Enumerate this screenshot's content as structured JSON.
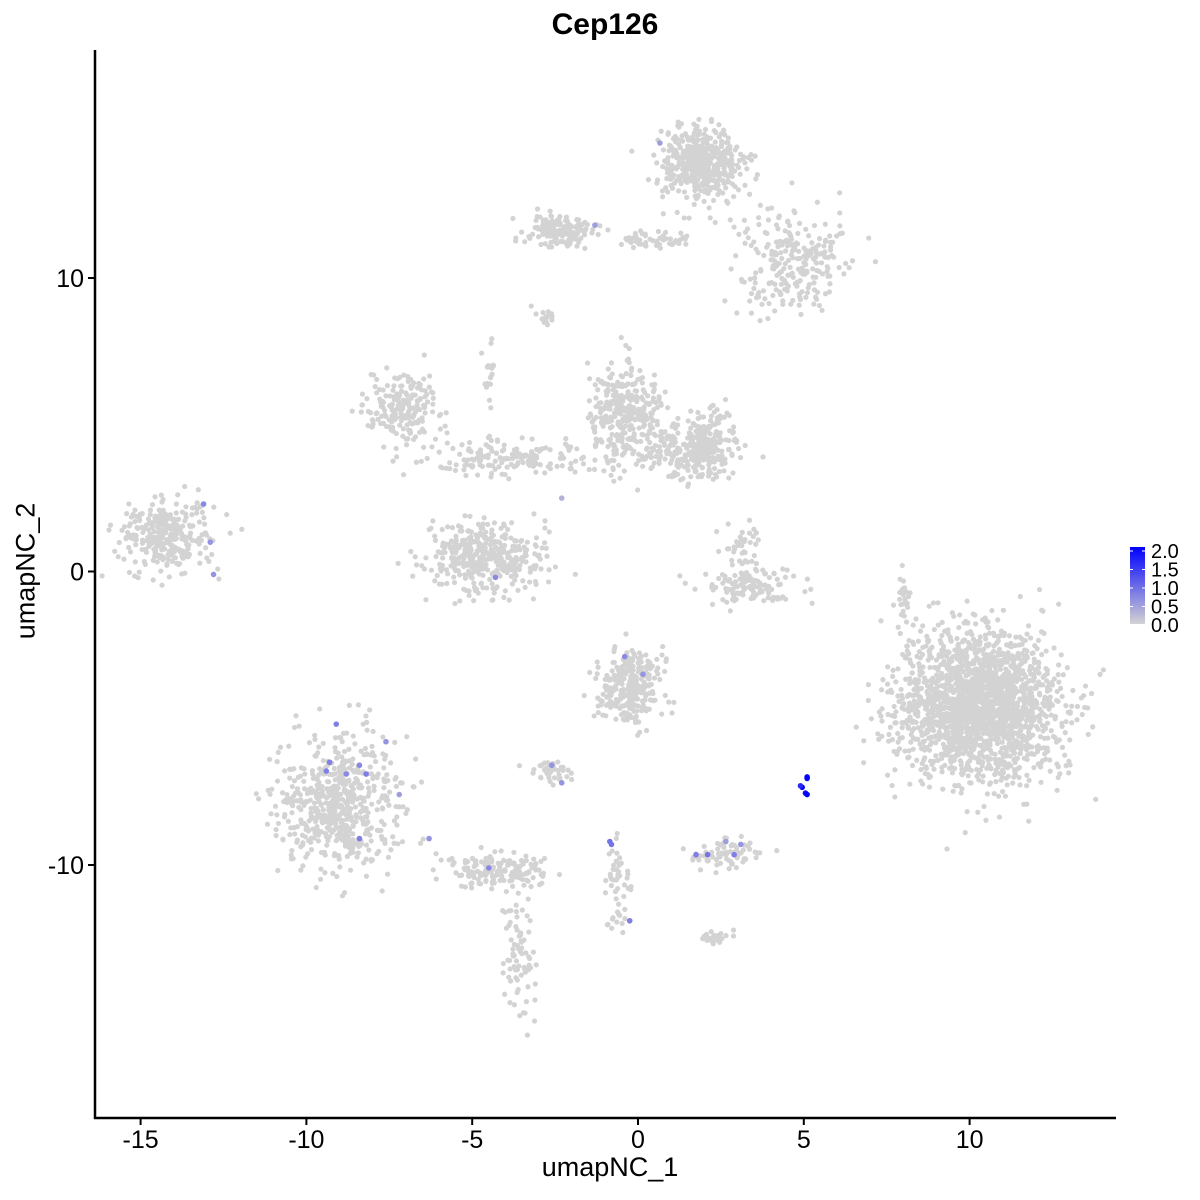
{
  "chart_data": {
    "type": "scatter",
    "title": "Cep126",
    "xlabel": "umapNC_1",
    "ylabel": "umapNC_2",
    "xlim": [
      -16.5,
      14.3
    ],
    "ylim": [
      -18.5,
      17.8
    ],
    "xticks": [
      "-15",
      "-10",
      "-5",
      "0",
      "5",
      "10"
    ],
    "yticks": [
      "-10",
      "0",
      "10"
    ],
    "grid": false,
    "legend": {
      "position": "right",
      "labels": [
        "2.0",
        "1.5",
        "1.0",
        "0.5",
        "0.0"
      ],
      "range": [
        0,
        2
      ]
    },
    "colors": {
      "low": "#D3D3D3",
      "high": "#0000FF"
    },
    "clusters_approx": [
      {
        "x": 1.9,
        "y": 13.9,
        "sdx": 0.6,
        "sdy": 0.6,
        "n": 500
      },
      {
        "x": 4.6,
        "y": 10.6,
        "sdx": 0.8,
        "sdy": 0.9,
        "n": 250
      },
      {
        "x": -2.35,
        "y": 11.6,
        "sdx": 0.5,
        "sdy": 0.3,
        "n": 150
      },
      {
        "x": 0.4,
        "y": 11.3,
        "sdx": 0.6,
        "sdy": 0.15,
        "n": 50
      },
      {
        "x": -2.8,
        "y": 8.7,
        "sdx": 0.15,
        "sdy": 0.15,
        "n": 15
      },
      {
        "x": -7.0,
        "y": 5.5,
        "sdx": 0.6,
        "sdy": 0.6,
        "n": 200
      },
      {
        "x": -4.5,
        "y": 6.8,
        "sdx": 0.1,
        "sdy": 0.5,
        "n": 20
      },
      {
        "x": -3.9,
        "y": 3.9,
        "sdx": 1.2,
        "sdy": 0.3,
        "n": 150
      },
      {
        "x": -0.4,
        "y": 5.3,
        "sdx": 0.6,
        "sdy": 0.8,
        "n": 350
      },
      {
        "x": 2.0,
        "y": 4.2,
        "sdx": 0.5,
        "sdy": 0.5,
        "n": 250
      },
      {
        "x": 0.9,
        "y": 4.1,
        "sdx": 0.5,
        "sdy": 0.3,
        "n": 60
      },
      {
        "x": -4.6,
        "y": 0.5,
        "sdx": 0.9,
        "sdy": 0.6,
        "n": 400
      },
      {
        "x": -14.2,
        "y": 1.2,
        "sdx": 0.7,
        "sdy": 0.6,
        "n": 300
      },
      {
        "x": 3.4,
        "y": -0.5,
        "sdx": 0.7,
        "sdy": 0.3,
        "n": 120
      },
      {
        "x": 3.1,
        "y": 0.8,
        "sdx": 0.3,
        "sdy": 0.4,
        "n": 40
      },
      {
        "x": 10.2,
        "y": -4.6,
        "sdx": 1.2,
        "sdy": 1.3,
        "n": 2000
      },
      {
        "x": 8.0,
        "y": -0.7,
        "sdx": 0.1,
        "sdy": 0.6,
        "n": 20
      },
      {
        "x": -0.2,
        "y": -3.9,
        "sdx": 0.5,
        "sdy": 0.6,
        "n": 300
      },
      {
        "x": -9.0,
        "y": -7.9,
        "sdx": 0.9,
        "sdy": 1.1,
        "n": 600
      },
      {
        "x": -4.2,
        "y": -10.2,
        "sdx": 0.8,
        "sdy": 0.3,
        "n": 150
      },
      {
        "x": -3.6,
        "y": -13.0,
        "sdx": 0.25,
        "sdy": 1.2,
        "n": 80
      },
      {
        "x": -2.6,
        "y": -6.8,
        "sdx": 0.3,
        "sdy": 0.2,
        "n": 40
      },
      {
        "x": 2.7,
        "y": -9.6,
        "sdx": 0.5,
        "sdy": 0.25,
        "n": 80
      },
      {
        "x": -0.6,
        "y": -10.6,
        "sdx": 0.2,
        "sdy": 0.9,
        "n": 50
      },
      {
        "x": 2.3,
        "y": -12.5,
        "sdx": 0.3,
        "sdy": 0.15,
        "n": 25
      }
    ],
    "expressing_points": [
      {
        "x": 0.66,
        "y": 14.6,
        "v": 0.5
      },
      {
        "x": -1.3,
        "y": 11.8,
        "v": 0.5
      },
      {
        "x": -13.1,
        "y": 2.3,
        "v": 0.7
      },
      {
        "x": -12.9,
        "y": 1.0,
        "v": 0.6
      },
      {
        "x": -12.8,
        "y": -0.1,
        "v": 0.6
      },
      {
        "x": -2.3,
        "y": 2.5,
        "v": 0.3
      },
      {
        "x": -4.3,
        "y": -0.2,
        "v": 0.7
      },
      {
        "x": -0.4,
        "y": -2.9,
        "v": 0.7
      },
      {
        "x": 0.15,
        "y": -3.5,
        "v": 0.6
      },
      {
        "x": -9.1,
        "y": -5.2,
        "v": 0.8
      },
      {
        "x": -7.6,
        "y": -5.8,
        "v": 0.6
      },
      {
        "x": -9.3,
        "y": -6.5,
        "v": 0.8
      },
      {
        "x": -9.4,
        "y": -6.8,
        "v": 0.8
      },
      {
        "x": -8.8,
        "y": -6.9,
        "v": 0.7
      },
      {
        "x": -8.4,
        "y": -6.6,
        "v": 0.7
      },
      {
        "x": -8.2,
        "y": -6.9,
        "v": 0.8
      },
      {
        "x": -7.2,
        "y": -7.6,
        "v": 0.5
      },
      {
        "x": -8.4,
        "y": -9.1,
        "v": 0.8
      },
      {
        "x": -6.3,
        "y": -9.1,
        "v": 0.6
      },
      {
        "x": -4.5,
        "y": -10.1,
        "v": 0.7
      },
      {
        "x": -2.6,
        "y": -6.6,
        "v": 0.6
      },
      {
        "x": -2.3,
        "y": -7.2,
        "v": 0.6
      },
      {
        "x": -0.85,
        "y": -9.2,
        "v": 0.9
      },
      {
        "x": -0.8,
        "y": -9.3,
        "v": 0.9
      },
      {
        "x": -0.25,
        "y": -11.9,
        "v": 0.8
      },
      {
        "x": 1.75,
        "y": -9.65,
        "v": 0.8
      },
      {
        "x": 2.1,
        "y": -9.65,
        "v": 0.9
      },
      {
        "x": 2.65,
        "y": -9.2,
        "v": 0.5
      },
      {
        "x": 2.9,
        "y": -9.65,
        "v": 0.8
      },
      {
        "x": 3.1,
        "y": -9.3,
        "v": 0.6
      },
      {
        "x": 5.1,
        "y": -7.05,
        "v": 2.0
      },
      {
        "x": 4.95,
        "y": -7.35,
        "v": 2.0
      },
      {
        "x": 5.05,
        "y": -7.55,
        "v": 1.9
      },
      {
        "x": 5.1,
        "y": -7.6,
        "v": 2.0
      },
      {
        "x": 4.9,
        "y": -7.3,
        "v": 1.6
      },
      {
        "x": 5.1,
        "y": -7.0,
        "v": 2.0
      }
    ]
  }
}
